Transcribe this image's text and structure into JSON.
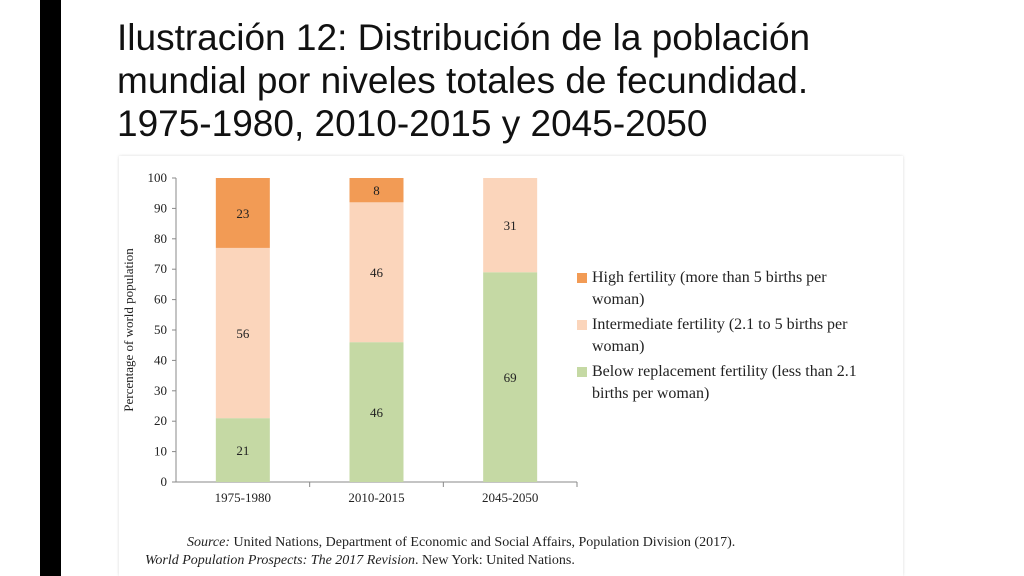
{
  "title": {
    "line1": "Ilustración 12: Distribución de la población",
    "line2": "mundial por niveles totales de fecundidad.",
    "line3": "1975-1980, 2010-2015 y 2045-2050"
  },
  "chart_data": {
    "type": "bar",
    "stacked": true,
    "categories": [
      "1975-1980",
      "2010-2015",
      "2045-2050"
    ],
    "series": [
      {
        "name": "Below replacement fertility (less than 2.1 births per woman)",
        "values": [
          21,
          46,
          69
        ],
        "color": "#c5d9a4"
      },
      {
        "name": "Intermediate fertility (2.1 to 5 births per woman)",
        "values": [
          56,
          46,
          31
        ],
        "color": "#fbd5bb"
      },
      {
        "name": "High fertility (more than 5 births per woman)",
        "values": [
          23,
          8,
          0
        ],
        "color": "#f29b55"
      }
    ],
    "data_labels": [
      [
        "21",
        "46",
        "69"
      ],
      [
        "56",
        "46",
        "31"
      ],
      [
        "23",
        "8",
        ""
      ]
    ],
    "ylabel": "Percentage of world population",
    "xlabel": "",
    "ylim": [
      0,
      100
    ],
    "yticks": [
      "0",
      "10",
      "20",
      "30",
      "40",
      "50",
      "60",
      "70",
      "80",
      "90",
      "100"
    ],
    "legend": {
      "placement": "right",
      "items": [
        {
          "line1": "High fertility (more than 5 births per",
          "line2": "woman)",
          "color": "#f29b55"
        },
        {
          "line1": "Intermediate fertility (2.1 to 5 births per",
          "line2": "woman)",
          "color": "#fbd5bb"
        },
        {
          "line1": "Below replacement fertility (less than 2.1",
          "line2": "births per woman)",
          "color": "#c5d9a4"
        }
      ]
    }
  },
  "source": {
    "label": "Source:",
    "line1_rest": " United Nations, Department of Economic and Social Affairs, Population Division (2017).",
    "line2_italic": "World Population Prospects: The 2017 Revision",
    "line2_rest": ". New York: United Nations."
  },
  "colors": {
    "left_bar": "#000000",
    "axis": "#888888"
  }
}
